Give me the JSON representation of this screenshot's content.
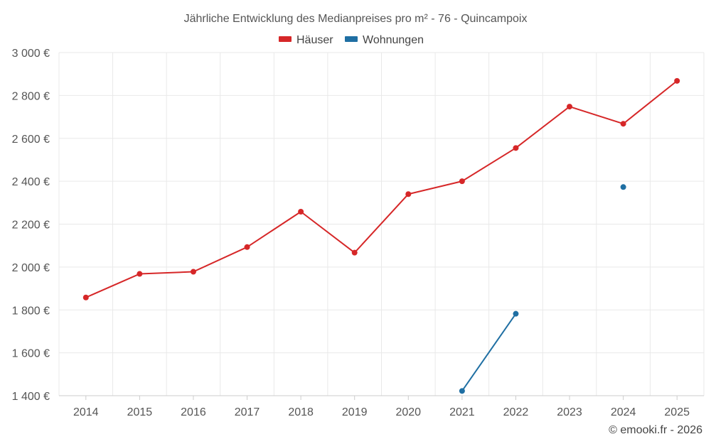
{
  "chart_data": {
    "type": "line",
    "title": "Jährliche Entwicklung des Medianpreises pro m² - 76 - Quincampoix",
    "categories": [
      "2014",
      "2015",
      "2016",
      "2017",
      "2018",
      "2019",
      "2020",
      "2021",
      "2022",
      "2023",
      "2024",
      "2025"
    ],
    "series": [
      {
        "name": "Häuser",
        "color": "#d62728",
        "values": [
          1858,
          1968,
          1978,
          2093,
          2258,
          2067,
          2340,
          2400,
          2555,
          2748,
          2668,
          2868
        ]
      },
      {
        "name": "Wohnungen",
        "color": "#1f6fa3",
        "values": [
          null,
          null,
          null,
          null,
          null,
          null,
          null,
          1422,
          1782,
          null,
          2373,
          null
        ]
      }
    ],
    "ylim": [
      1400,
      3000
    ],
    "yticks": [
      1400,
      1600,
      1800,
      2000,
      2200,
      2400,
      2600,
      2800,
      3000
    ],
    "ytick_labels": [
      "1 400 €",
      "1 600 €",
      "1 800 €",
      "2 000 €",
      "2 200 €",
      "2 400 €",
      "2 600 €",
      "2 800 €",
      "3 000 €"
    ],
    "xlabel": "",
    "ylabel": "",
    "grid": true,
    "legend": "top-center"
  },
  "credit": "© emooki.fr - 2026"
}
